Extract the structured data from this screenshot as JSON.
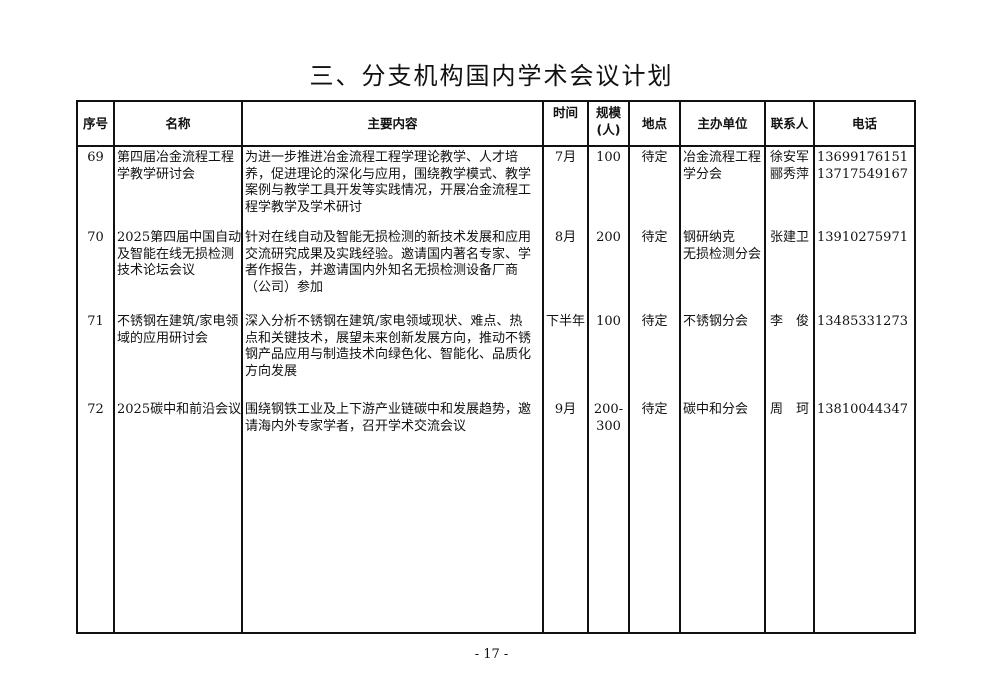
{
  "title": "三、分支机构国内学术会议计划",
  "headers": {
    "no": "序号",
    "name": "名称",
    "content": "主要内容",
    "time": "时间",
    "scale_1": "规模",
    "scale_2": "(人)",
    "place": "地点",
    "host": "主办单位",
    "contact": "联系人",
    "phone": "电话"
  },
  "rows": [
    {
      "no": "69",
      "name": [
        "第四届冶金流程工程",
        "学教学研讨会"
      ],
      "content": [
        "为进一步推进冶金流程工程学理论教学、人才培",
        "养，促进理论的深化与应用，围绕教学模式、教学",
        "案例与教学工具开发等实践情况，开展冶金流程工",
        "程学教学及学术研讨"
      ],
      "time": [
        "7月"
      ],
      "scale": [
        "100"
      ],
      "place": [
        "待定"
      ],
      "host": [
        "冶金流程工程",
        "学分会"
      ],
      "contact": [
        "徐安军",
        "郦秀萍"
      ],
      "phone": [
        "13699176151",
        "13717549167"
      ]
    },
    {
      "no": "70",
      "name": [
        "2025第四届中国自动",
        "及智能在线无损检测",
        "技术论坛会议"
      ],
      "content": [
        "针对在线自动及智能无损检测的新技术发展和应用",
        "交流研究成果及实践经验。邀请国内著名专家、学",
        "者作报告，并邀请国内外知名无损检测设备厂商",
        "（公司）参加"
      ],
      "time": [
        "8月"
      ],
      "scale": [
        "200"
      ],
      "place": [
        "待定"
      ],
      "host": [
        "钢研纳克",
        "无损检测分会"
      ],
      "contact": [
        "张建卫"
      ],
      "phone": [
        "13910275971"
      ]
    },
    {
      "no": "71",
      "name": [
        "不锈钢在建筑/家电领",
        "域的应用研讨会"
      ],
      "content": [
        "深入分析不锈钢在建筑/家电领域现状、难点、热",
        "点和关键技术，展望未来创新发展方向，推动不锈",
        "钢产品应用与制造技术向绿色化、智能化、品质化",
        "方向发展"
      ],
      "time": [
        "下半年"
      ],
      "scale": [
        "100"
      ],
      "place": [
        "待定"
      ],
      "host": [
        "不锈钢分会"
      ],
      "contact": [
        "李　俊"
      ],
      "phone": [
        "13485331273"
      ]
    },
    {
      "no": "72",
      "name": [
        "2025碳中和前沿会议"
      ],
      "content": [
        "围绕钢铁工业及上下游产业链碳中和发展趋势，邀",
        "请海内外专家学者，召开学术交流会议"
      ],
      "time": [
        "9月"
      ],
      "scale": [
        "200-",
        "300"
      ],
      "place": [
        "待定"
      ],
      "host": [
        "碳中和分会"
      ],
      "contact": [
        "周　珂"
      ],
      "phone": [
        "13810044347"
      ]
    }
  ],
  "page_number": "- 17 -"
}
